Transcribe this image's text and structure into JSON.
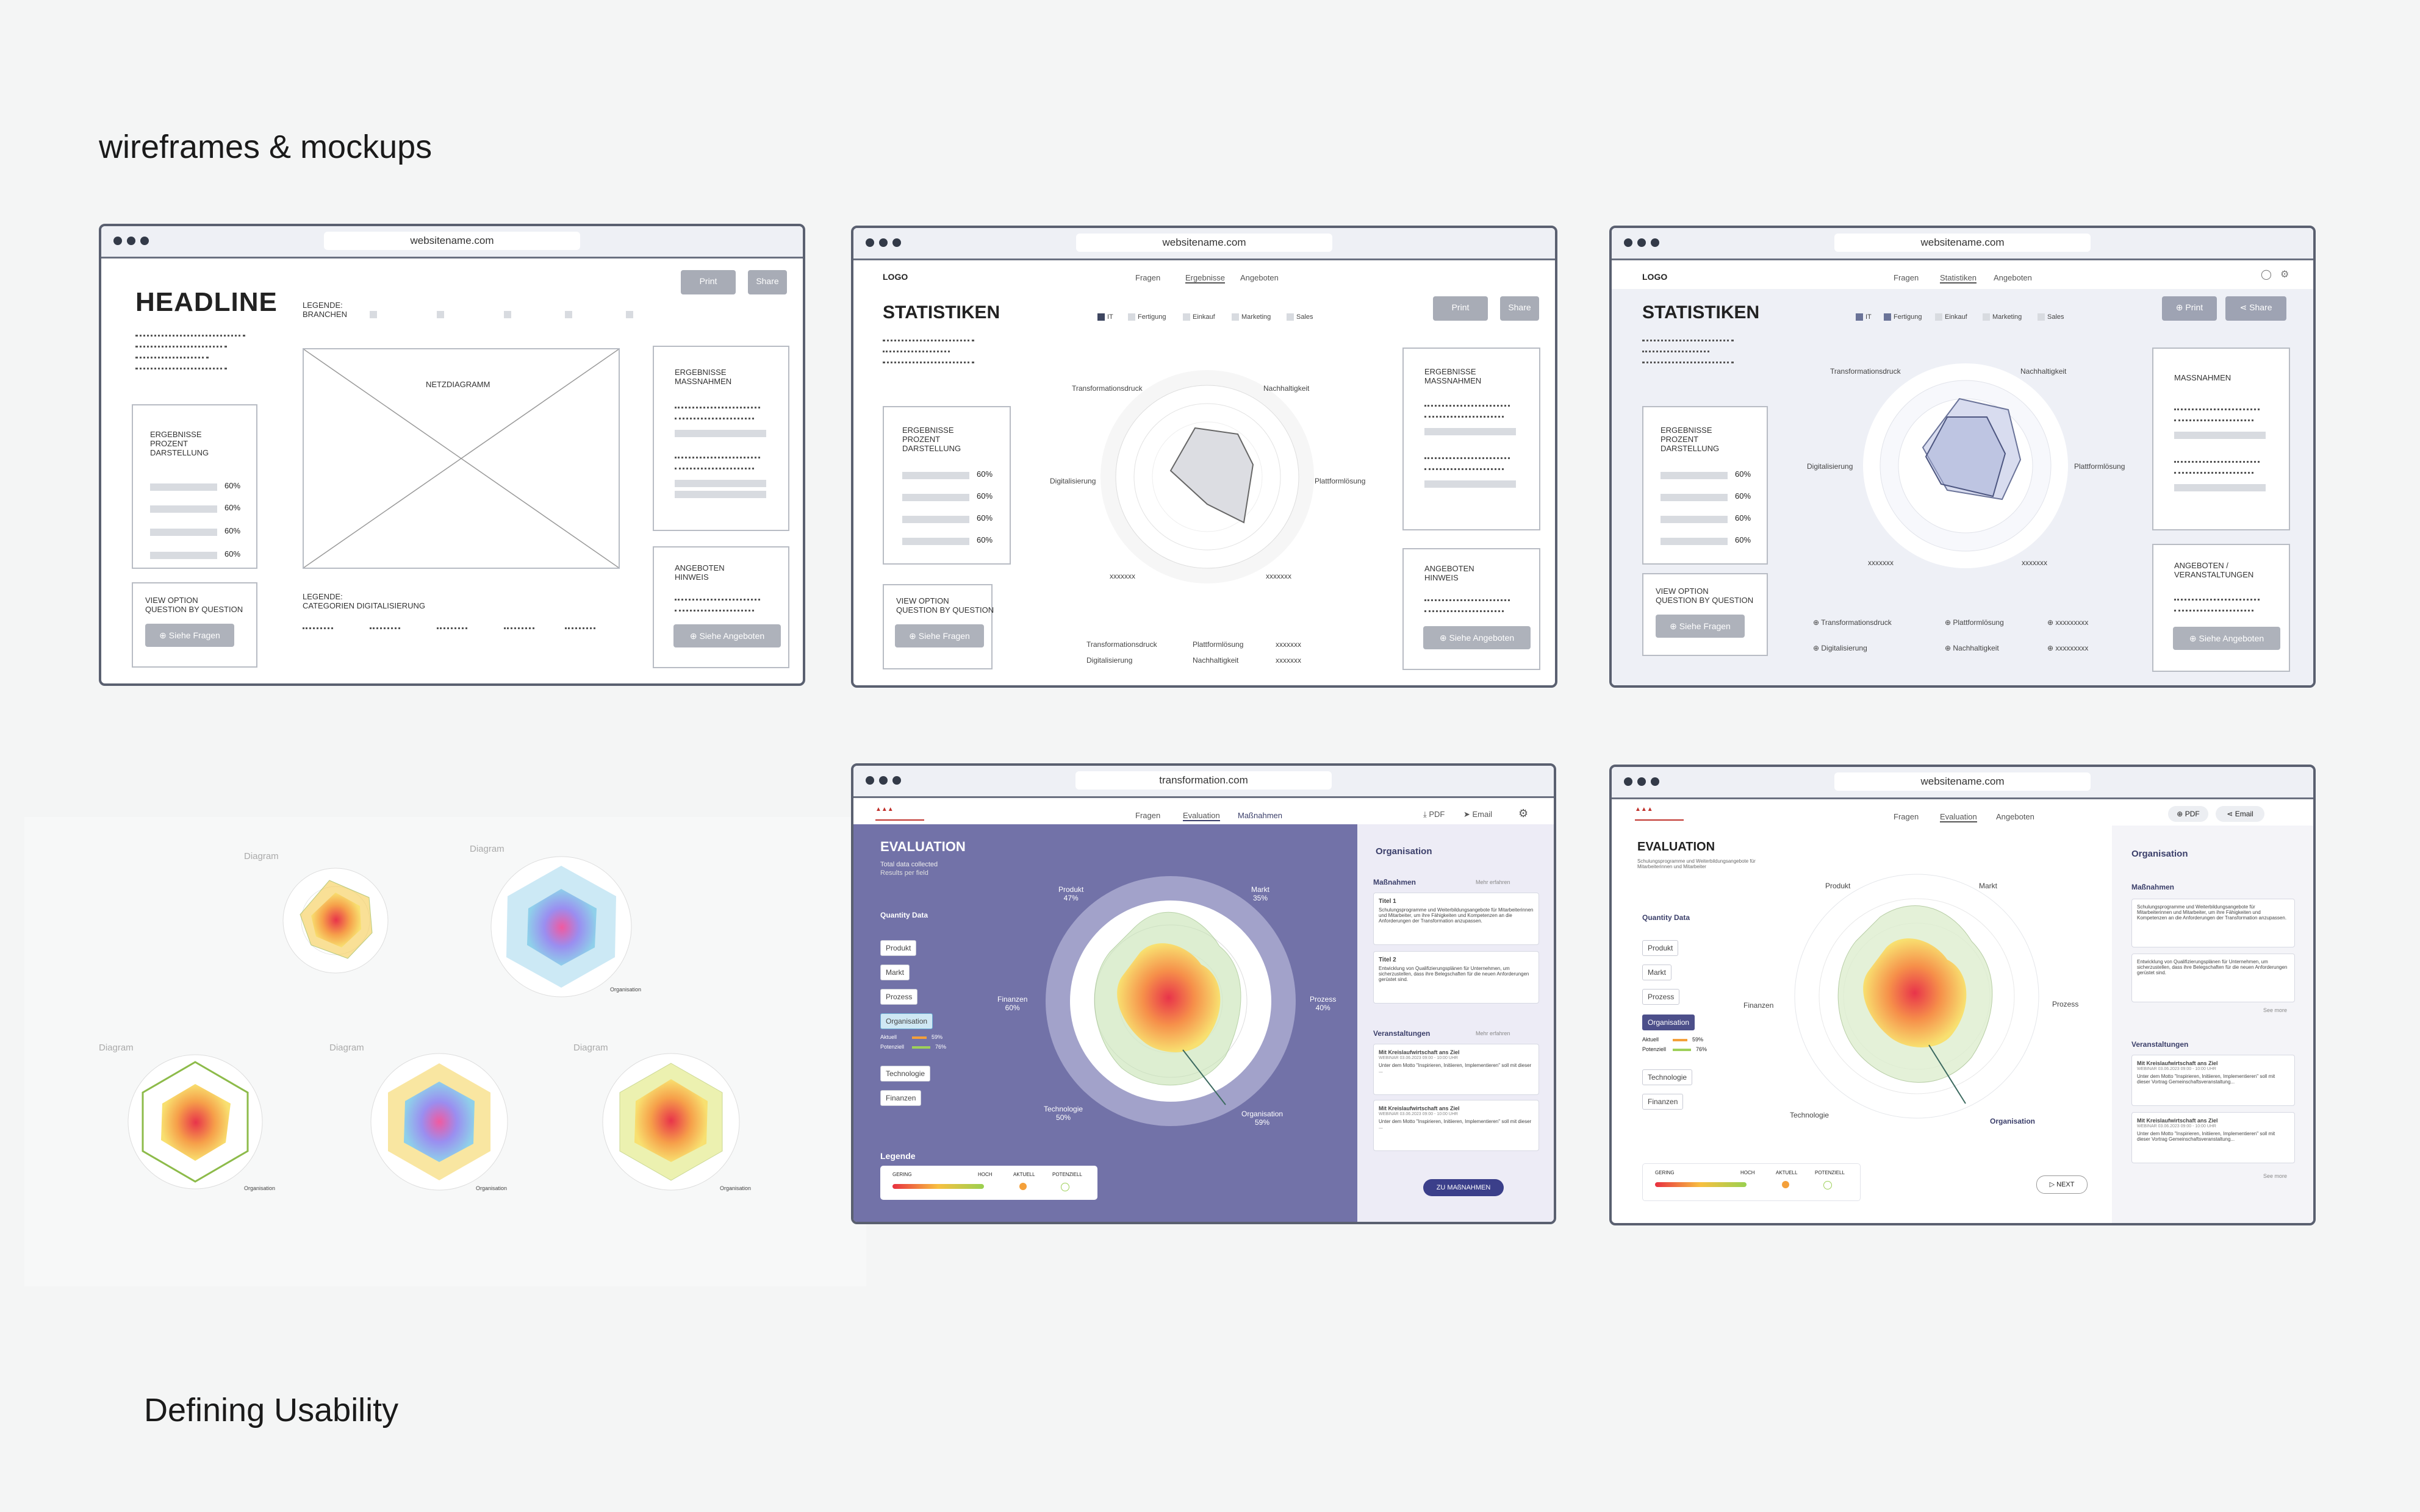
{
  "headings": {
    "top": "wireframes & mockups",
    "bottom": "Defining Usability"
  },
  "w1": {
    "url": "websitename.com",
    "headline": "HEADLINE",
    "legend1": "LEGENDE:\nBRANCHEN",
    "legend2": "LEGENDE:\nCATEGORIEN DIGITALISIERUNG",
    "print": "Print",
    "share": "Share",
    "diagram": "NETZDIAGRAMM",
    "results": "ERGEBNISSE\nPROZENT\nDARSTELLUNG",
    "pcts": [
      "60%",
      "60%",
      "60%",
      "60%"
    ],
    "view": "VIEW OPTION\nQUESTION BY QUESTION",
    "siehe_fragen": "Siehe Fragen",
    "massn": "ERGEBNISSE\nMASSNAHMEN",
    "angeb": "ANGEBOTEN\nHINWEIS",
    "siehe_ang": "Siehe Angeboten"
  },
  "w2": {
    "url": "websitename.com",
    "logo": "LOGO",
    "nav": [
      "Fragen",
      "Ergebnisse",
      "Angeboten"
    ],
    "title": "STATISTIKEN",
    "legend": [
      "IT",
      "Fertigung",
      "Einkauf",
      "Marketing",
      "Sales"
    ],
    "print": "Print",
    "share": "Share",
    "axes": [
      "Transformationsdruck",
      "Nachhaltigkeit",
      "Digitalisierung",
      "Plattformlösung",
      "xxxxxxx",
      "xxxxxxx"
    ],
    "bottom": [
      "Transformationsdruck",
      "Plattformlösung",
      "xxxxxxx",
      "Digitalisierung",
      "Nachhaltigkeit",
      "xxxxxxx"
    ],
    "results": "ERGEBNISSE\nPROZENT\nDARSTELLUNG",
    "pcts": [
      "60%",
      "60%",
      "60%",
      "60%"
    ],
    "view": "VIEW OPTION\nQUESTION BY QUESTION",
    "siehe_fragen": "Siehe Fragen",
    "massn": "ERGEBNISSE\nMASSNAHMEN",
    "angeb": "ANGEBOTEN\nHINWEIS",
    "siehe_ang": "Siehe Angeboten"
  },
  "w3": {
    "url": "websitename.com",
    "logo": "LOGO",
    "nav": [
      "Fragen",
      "Statistiken",
      "Angeboten"
    ],
    "title": "STATISTIKEN",
    "legend": [
      "IT",
      "Fertigung",
      "Einkauf",
      "Marketing",
      "Sales"
    ],
    "print": "Print",
    "share": "Share",
    "axes": [
      "Transformationsdruck",
      "Nachhaltigkeit",
      "Digitalisierung",
      "Plattformlösung",
      "xxxxxxx",
      "xxxxxxx"
    ],
    "chips": [
      "Transformationsdruck",
      "Plattformlösung",
      "xxxxxxxxx",
      "Digitalisierung",
      "Nachhaltigkeit",
      "xxxxxxxxx"
    ],
    "results": "ERGEBNISSE\nPROZENT\nDARSTELLUNG",
    "pcts": [
      "60%",
      "60%",
      "60%",
      "60%"
    ],
    "view": "VIEW OPTION\nQUESTION BY QUESTION",
    "siehe_fragen": "Siehe Fragen",
    "massn": "MASSNAHMEN",
    "angeb": "ANGEBOTEN /\nVERANSTALTUNGEN",
    "siehe_ang": "Siehe Angeboten"
  },
  "diagrams": {
    "label": "Diagram",
    "axes": [
      "Produkt",
      "Markt",
      "Prozess",
      "Organisation",
      "Technologie",
      "Finanzen"
    ]
  },
  "w5": {
    "url": "transformation.com",
    "nav": [
      "Fragen",
      "Evaluation",
      "Maßnahmen"
    ],
    "pdf": "PDF",
    "email": "Email",
    "title": "EVALUATION",
    "sub1": "Total data collected",
    "sub2": "Results per field",
    "qd": "Quantity Data",
    "items": [
      "Produkt",
      "Markt",
      "Prozess",
      "Organisation",
      "Technologie",
      "Finanzen"
    ],
    "aktuell": "Aktuell",
    "potenziell": "Potenziell",
    "ak_v": "59%",
    "po_v": "76%",
    "axes": [
      {
        "n": "Produkt",
        "v": "47%"
      },
      {
        "n": "Markt",
        "v": "35%"
      },
      {
        "n": "Prozess",
        "v": "40%"
      },
      {
        "n": "Organisation",
        "v": "59%"
      },
      {
        "n": "Technologie",
        "v": "50%"
      },
      {
        "n": "Finanzen",
        "v": "60%"
      }
    ],
    "legende": "Legende",
    "gering": "GERING",
    "hoch": "HOCH",
    "aktuell_l": "AKTUELL",
    "pot_l": "POTENZIELL",
    "org": "Organisation",
    "massn": "Maßnahmen",
    "mehr": "Mehr erfahren",
    "t1": "Titel 1",
    "t1b": "Schulungsprogramme und Weiterbildungsangebote für Mitarbeiterinnen und Mitarbeiter, um ihre Fähigkeiten und Kompetenzen an die Anforderungen der Transformation anzupassen.",
    "t2": "Titel 2",
    "t2b": "Entwicklung von Qualifizierungsplänen für Unternehmen, um sicherzustellen, dass ihre Belegschaften für die neuen Anforderungen gerüstet sind.",
    "veran": "Veranstaltungen",
    "e1": "Mit Kreislaufwirtschaft ans Ziel",
    "e1d": "WEBINAR 03.06.2023 09:00 - 10:00 UHR",
    "e1b": "Unter dem Motto \"Inspirieren, Initiieren, Implementieren\" soll mit dieser ...",
    "cta": "ZU MAßNAHMEN"
  },
  "w6": {
    "url": "websitename.com",
    "nav": [
      "Fragen",
      "Evaluation",
      "Angeboten"
    ],
    "pdf": "PDF",
    "email": "Email",
    "title": "EVALUATION",
    "sub": "Schulungsprogramme und Weiterbildungsangebote für Mitarbeiterinnen und Mitarbeiter",
    "qd": "Quantity Data",
    "items": [
      "Produkt",
      "Markt",
      "Prozess",
      "Organisation",
      "Technologie",
      "Finanzen"
    ],
    "aktuell": "Aktuell",
    "potenziell": "Potenziell",
    "ak_v": "59%",
    "po_v": "76%",
    "axes": [
      "Produkt",
      "Markt",
      "Prozess",
      "Organisation",
      "Technologie",
      "Finanzen"
    ],
    "gering": "GERING",
    "hoch": "HOCH",
    "aktuell_l": "AKTUELL",
    "pot_l": "POTENZIELL",
    "next": "NEXT",
    "org": "Organisation",
    "massn": "Maßnahmen",
    "m1": "Schulungsprogramme und Weiterbildungsangebote für Mitarbeiterinnen und Mitarbeiter, um ihre Fähigkeiten und Kompetenzen an die Anforderungen der Transformation anzupassen.",
    "m2": "Entwicklung von Qualifizierungsplänen für Unternehmen, um sicherzustellen, dass ihre Belegschaften für die neuen Anforderungen gerüstet sind.",
    "see": "See more",
    "veran": "Veranstaltungen",
    "e1": "Mit Kreislaufwirtschaft ans Ziel",
    "e1d": "WEBINAR 03.06.2023 09:00 - 10:00 UHR",
    "e1b": "Unter dem Motto \"Inspirieren, Initiieren, Implementieren\" soll mit dieser Vortrag Gemeinschaftsveranstaltung..."
  }
}
